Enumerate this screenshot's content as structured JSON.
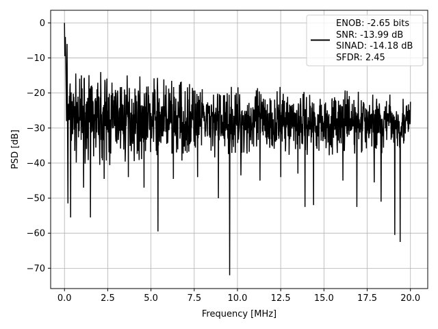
{
  "chart_data": {
    "type": "line",
    "xlabel": "Frequency [MHz]",
    "ylabel": "PSD [dB]",
    "xlim": [
      -0.8,
      21.0
    ],
    "ylim": [
      -75.8,
      3.6
    ],
    "xticks": [
      0.0,
      2.5,
      5.0,
      7.5,
      10.0,
      12.5,
      15.0,
      17.5,
      20.0
    ],
    "xtick_labels": [
      "0.0",
      "2.5",
      "5.0",
      "7.5",
      "10.0",
      "12.5",
      "15.0",
      "17.5",
      "20.0"
    ],
    "yticks": [
      0,
      -10,
      -20,
      -30,
      -40,
      -50,
      -60,
      -70
    ],
    "ytick_labels": [
      "0",
      "−10",
      "−20",
      "−30",
      "−40",
      "−50",
      "−60",
      "−70"
    ],
    "grid": true,
    "legend_position": "top-right",
    "legend_lines": [
      "ENOB: -2.65 bits",
      "SNR: -13.99 dB",
      "SINAD: -14.18 dB",
      "SFDR: 2.45"
    ],
    "series": [
      {
        "color": "#000000",
        "x_range": [
          0.0,
          20.0
        ],
        "initial_points": [
          [
            0.0,
            0.0
          ],
          [
            0.02,
            -9.5
          ],
          [
            0.05,
            -4.0
          ],
          [
            0.08,
            -12.5
          ],
          [
            0.12,
            -28.0
          ],
          [
            0.15,
            -6.0
          ]
        ],
        "envelope": [
          {
            "x": 0.2,
            "upper": -14,
            "lower": -40
          },
          {
            "x": 2.5,
            "upper": -14,
            "lower": -41
          },
          {
            "x": 5.0,
            "upper": -15,
            "lower": -40
          },
          {
            "x": 7.5,
            "upper": -17,
            "lower": -39
          },
          {
            "x": 10.0,
            "upper": -18,
            "lower": -39
          },
          {
            "x": 12.5,
            "upper": -18,
            "lower": -38
          },
          {
            "x": 15.0,
            "upper": -19,
            "lower": -38
          },
          {
            "x": 17.5,
            "upper": -19,
            "lower": -38
          },
          {
            "x": 20.0,
            "upper": -21,
            "lower": -36
          }
        ],
        "deep_notches": [
          [
            0.18,
            -51.5
          ],
          [
            0.35,
            -55.5
          ],
          [
            1.1,
            -47.0
          ],
          [
            1.5,
            -55.5
          ],
          [
            2.3,
            -44.5
          ],
          [
            3.7,
            -44.0
          ],
          [
            4.6,
            -47.0
          ],
          [
            5.4,
            -59.5
          ],
          [
            6.3,
            -44.5
          ],
          [
            7.7,
            -44.0
          ],
          [
            8.9,
            -50.0
          ],
          [
            9.55,
            -72.0
          ],
          [
            10.2,
            -43.5
          ],
          [
            11.3,
            -45.0
          ],
          [
            12.5,
            -44.0
          ],
          [
            13.5,
            -43.0
          ],
          [
            13.9,
            -52.5
          ],
          [
            14.4,
            -52.0
          ],
          [
            16.1,
            -45.0
          ],
          [
            16.9,
            -52.5
          ],
          [
            17.9,
            -45.5
          ],
          [
            18.3,
            -51.0
          ],
          [
            19.1,
            -60.5
          ],
          [
            19.4,
            -62.5
          ],
          [
            20.0,
            -46.0
          ]
        ],
        "end_value": -22.5
      }
    ]
  }
}
